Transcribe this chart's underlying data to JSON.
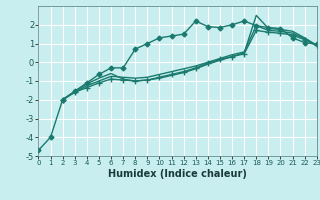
{
  "title": "",
  "xlabel": "Humidex (Indice chaleur)",
  "background_color": "#c8eef0",
  "grid_color": "#ffffff",
  "line_color": "#1a7a6e",
  "xlim": [
    0,
    23
  ],
  "ylim": [
    -5,
    3
  ],
  "yticks": [
    -5,
    -4,
    -3,
    -2,
    -1,
    0,
    1,
    2
  ],
  "xticks": [
    0,
    1,
    2,
    3,
    4,
    5,
    6,
    7,
    8,
    9,
    10,
    11,
    12,
    13,
    14,
    15,
    16,
    17,
    18,
    19,
    20,
    21,
    22,
    23
  ],
  "series": [
    {
      "x": [
        0,
        1,
        2,
        3,
        4,
        5,
        6,
        7,
        8,
        9,
        10,
        11,
        12,
        13,
        14,
        15,
        16,
        17,
        18,
        19,
        20,
        21,
        22,
        23
      ],
      "y": [
        -4.7,
        -4.0,
        -2.0,
        -1.55,
        -1.1,
        -0.65,
        -0.3,
        -0.3,
        0.7,
        1.0,
        1.3,
        1.4,
        1.5,
        2.2,
        1.9,
        1.85,
        2.0,
        2.2,
        1.95,
        1.85,
        1.8,
        1.3,
        1.05,
        0.95
      ],
      "marker": "D",
      "markersize": 2.5,
      "linewidth": 1.0,
      "linestyle": "-"
    },
    {
      "x": [
        2,
        3,
        4,
        5,
        6,
        7,
        8,
        9,
        10,
        11,
        12,
        13,
        14,
        15,
        16,
        17,
        18,
        19,
        20,
        21,
        22,
        23
      ],
      "y": [
        -2.0,
        -1.55,
        -1.15,
        -0.85,
        -0.6,
        -0.9,
        -1.0,
        -0.95,
        -0.85,
        -0.7,
        -0.55,
        -0.35,
        -0.1,
        0.1,
        0.3,
        0.5,
        2.5,
        1.8,
        1.75,
        1.65,
        1.3,
        0.9
      ],
      "marker": null,
      "markersize": 0,
      "linewidth": 1.0,
      "linestyle": "-"
    },
    {
      "x": [
        2,
        3,
        4,
        5,
        6,
        7,
        8,
        9,
        10,
        11,
        12,
        13,
        14,
        15,
        16,
        17,
        18,
        19,
        20,
        21,
        22,
        23
      ],
      "y": [
        -2.0,
        -1.6,
        -1.25,
        -1.0,
        -0.75,
        -0.8,
        -0.85,
        -0.8,
        -0.65,
        -0.5,
        -0.35,
        -0.2,
        0.0,
        0.2,
        0.4,
        0.55,
        1.95,
        1.7,
        1.65,
        1.55,
        1.25,
        0.9
      ],
      "marker": null,
      "markersize": 0,
      "linewidth": 1.0,
      "linestyle": "-"
    },
    {
      "x": [
        2,
        3,
        4,
        5,
        6,
        7,
        8,
        9,
        10,
        11,
        12,
        13,
        14,
        15,
        16,
        17,
        18,
        19,
        20,
        21,
        22,
        23
      ],
      "y": [
        -2.0,
        -1.6,
        -1.35,
        -1.1,
        -0.9,
        -0.95,
        -1.0,
        -0.95,
        -0.8,
        -0.65,
        -0.5,
        -0.3,
        -0.05,
        0.15,
        0.3,
        0.45,
        1.7,
        1.6,
        1.55,
        1.45,
        1.2,
        0.9
      ],
      "marker": "+",
      "markersize": 4,
      "linewidth": 1.0,
      "linestyle": "-"
    }
  ]
}
